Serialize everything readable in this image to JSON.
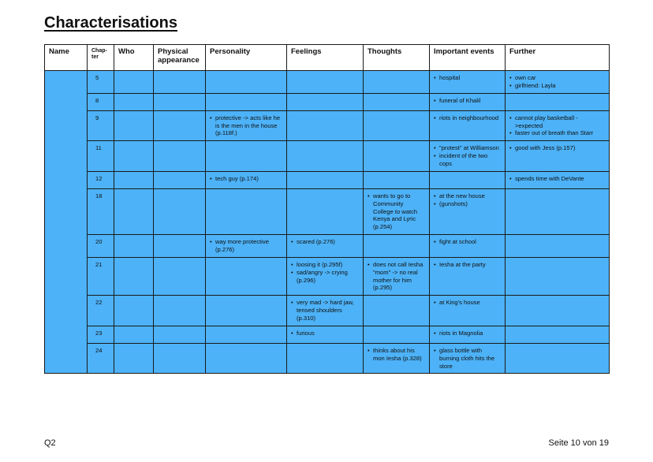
{
  "title": "Characterisations",
  "columns": {
    "name": "Name",
    "chapter": "Chap-\nter",
    "who": "Who",
    "physical": "Physical appearance",
    "personality": "Personality",
    "feelings": "Feelings",
    "thoughts": "Thoughts",
    "events": "Important events",
    "further": "Further"
  },
  "rows": [
    {
      "chapter": "5",
      "personality": [],
      "feelings": [],
      "thoughts": [],
      "events": [
        "hospital"
      ],
      "further": [
        "own car",
        "girlfriend: Layla"
      ]
    },
    {
      "chapter": "8",
      "personality": [],
      "feelings": [],
      "thoughts": [],
      "events": [
        "funeral of Khalil"
      ],
      "further": []
    },
    {
      "chapter": "9",
      "personality": [
        "protective -> acts like he is the men in the house (p.118f.)"
      ],
      "feelings": [],
      "thoughts": [],
      "events": [
        "riots in neighbourhood"
      ],
      "further": [
        "cannot play basketball ->expected",
        "faster out of breath than Starr"
      ]
    },
    {
      "chapter": "11",
      "personality": [],
      "feelings": [],
      "thoughts": [],
      "events": [
        "\"protest\" at Williamson",
        "incident of the two cops"
      ],
      "further": [
        "good with Jess (p.157)"
      ]
    },
    {
      "chapter": "12",
      "personality": [
        "tech guy (p.174)"
      ],
      "feelings": [],
      "thoughts": [],
      "events": [],
      "further": [
        "spends time with DeVante"
      ]
    },
    {
      "chapter": "18",
      "personality": [],
      "feelings": [],
      "thoughts": [
        "wants to go to Community College to watch Kenya and Lyric (p.254)"
      ],
      "events": [
        "at the new house",
        "(gunshots)"
      ],
      "further": []
    },
    {
      "chapter": "20",
      "personality": [
        "way more protective (p.276)"
      ],
      "feelings": [
        "scared (p.276)"
      ],
      "thoughts": [],
      "events": [
        "fight at school"
      ],
      "further": []
    },
    {
      "chapter": "21",
      "personality": [],
      "feelings": [
        "loosing it (p.295f)",
        "sad/angry -> crying (p.296)"
      ],
      "thoughts": [
        "does not call Iesha \"mom\" -> no real mother for him (p.295)"
      ],
      "events": [
        "Iesha at the party"
      ],
      "further": []
    },
    {
      "chapter": "22",
      "personality": [],
      "feelings": [
        "very mad -> hard jaw, tensed shoulders (p.310)"
      ],
      "thoughts": [],
      "events": [
        "at King's house"
      ],
      "further": []
    },
    {
      "chapter": "23",
      "personality": [],
      "feelings": [
        "furious"
      ],
      "thoughts": [],
      "events": [
        "riots in Magnolia"
      ],
      "further": []
    },
    {
      "chapter": "24",
      "personality": [],
      "feelings": [],
      "thoughts": [
        "thinks about his mon Iesha (p.328)"
      ],
      "events": [
        "glass bottle with burning cloth hits the store"
      ],
      "further": []
    }
  ],
  "footer": {
    "left": "Q2",
    "right": "Seite 10 von 19"
  },
  "colors": {
    "cell_fill": "#4db2f7",
    "border": "#1a1a1a"
  }
}
